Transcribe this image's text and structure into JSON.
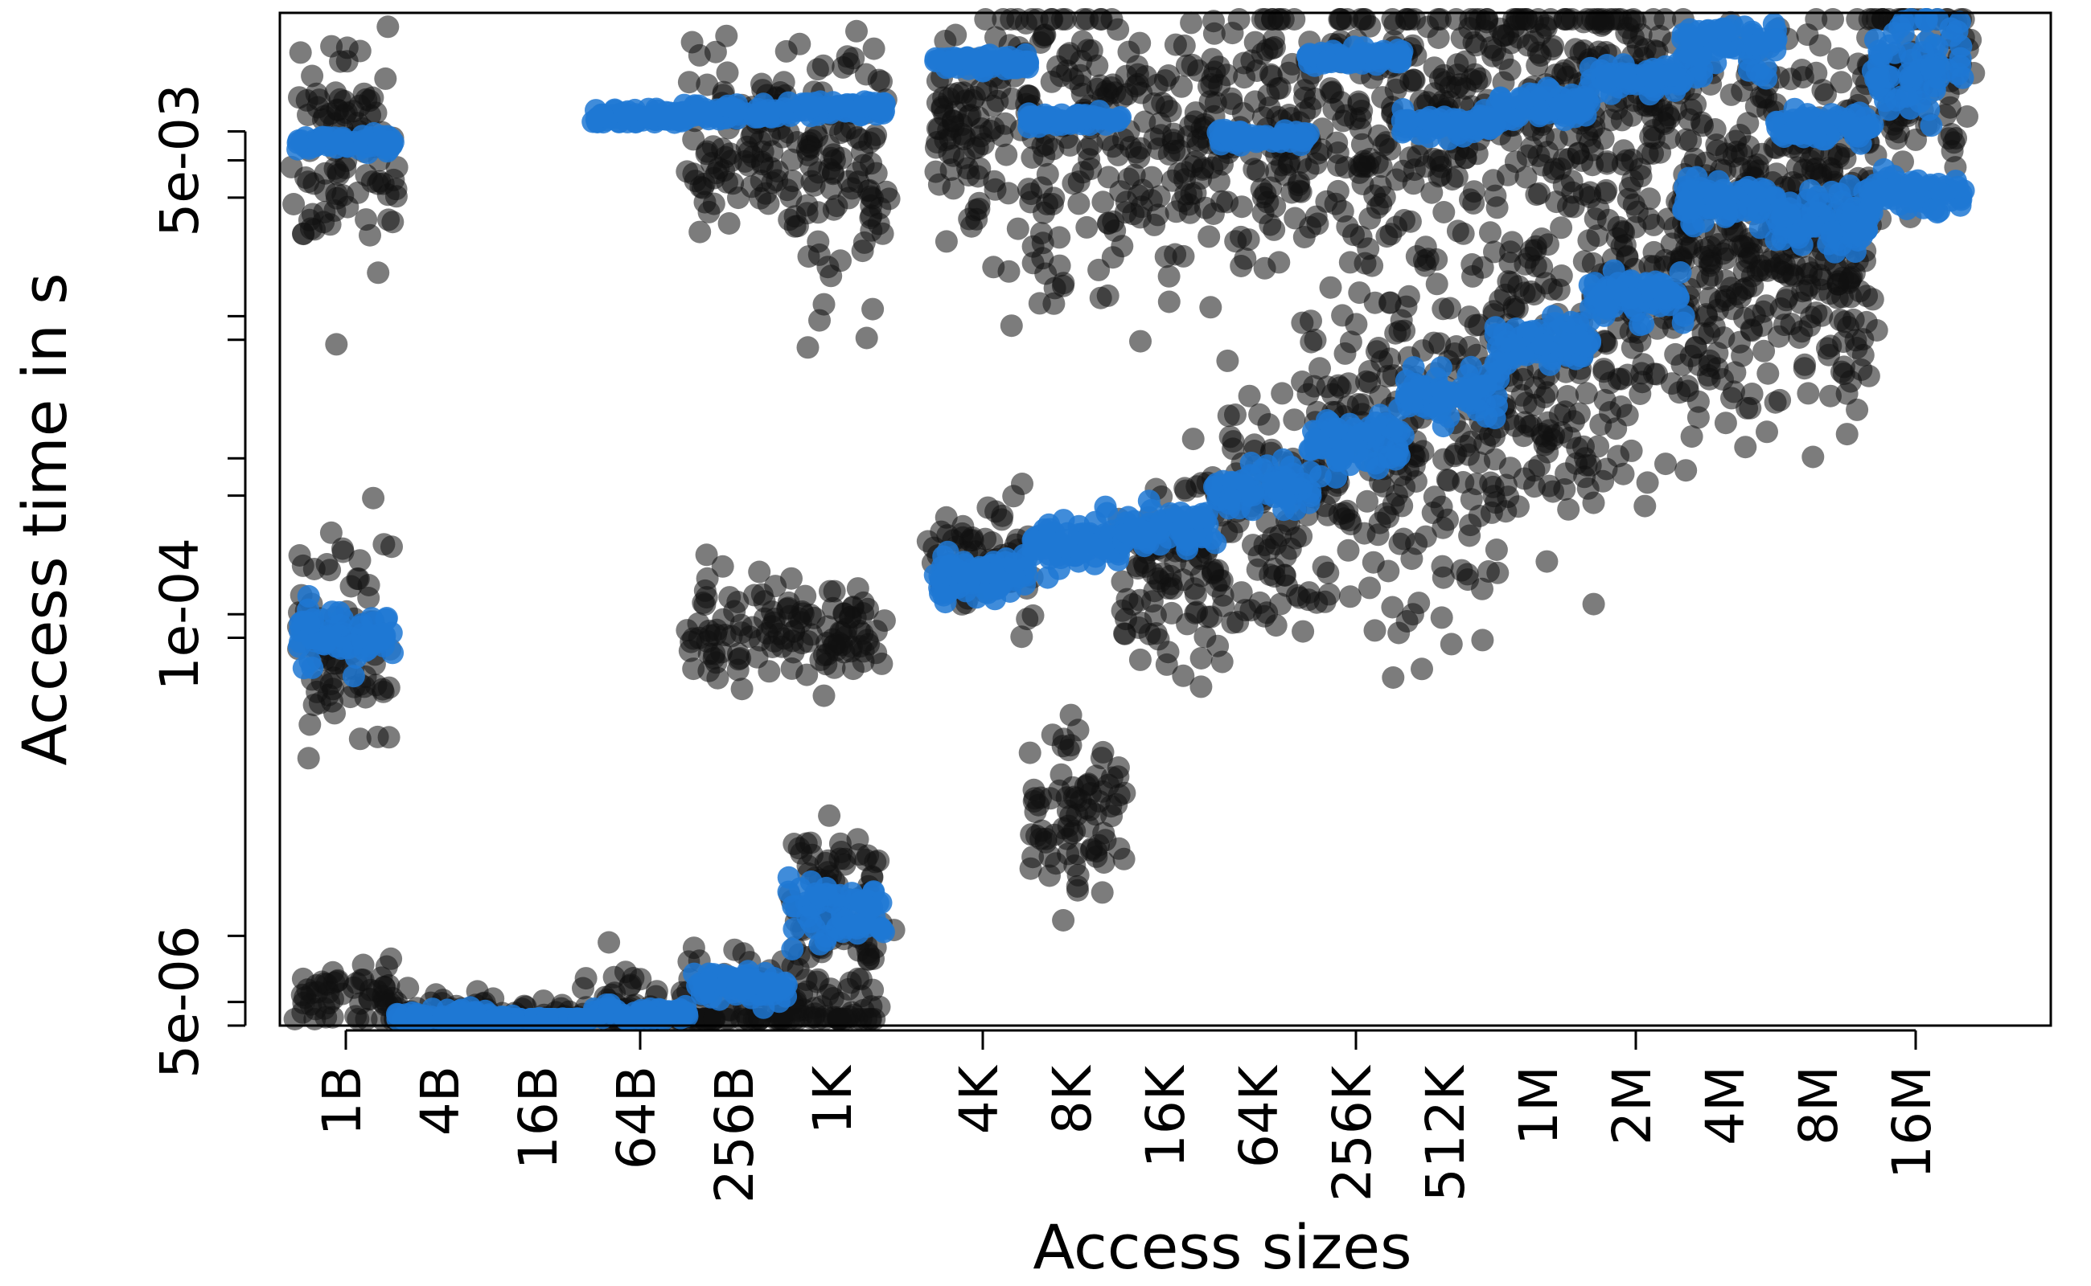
{
  "chart_data": {
    "type": "scatter",
    "title": "",
    "xlabel": "Access sizes",
    "ylabel": "Access time in s",
    "y_scale": "log",
    "ylim": [
      5e-06,
      0.0125
    ],
    "y_ticks": [
      5e-06,
      6e-06,
      1e-05,
      0.0001,
      0.00012,
      0.0003,
      0.0004,
      0.001,
      0.0012,
      0.003,
      0.004,
      0.005
    ],
    "y_tick_labels": [
      {
        "value": 6e-06,
        "label": "5e-06"
      },
      {
        "value": 0.00012,
        "label": "1e-04"
      },
      {
        "value": 0.004,
        "label": "5e-03"
      }
    ],
    "categories": [
      "1B",
      "4B",
      "16B",
      "64B",
      "256B",
      "1K",
      "4K",
      "8K",
      "16K",
      "64K",
      "256K",
      "512K",
      "1M",
      "2M",
      "4M",
      "8M",
      "16M"
    ],
    "x_major_ticks": [
      "1B",
      "64B",
      "4K",
      "256K",
      "2M",
      "16M"
    ],
    "grid": false,
    "legend": "none",
    "colors": {
      "series_a": "#111111",
      "series_b": "#1f78d4"
    },
    "series": [
      {
        "color_key": "series_a",
        "clusters": [
          {
            "x": "1B",
            "y": 0.0001,
            "spread": 0.35
          },
          {
            "x": "1B",
            "y": 0.0044,
            "spread": 0.45
          },
          {
            "x": "1B",
            "y": 6.2e-06,
            "spread": 0.12
          },
          {
            "x": "4B",
            "y": 5.3e-06,
            "spread": 0.1
          },
          {
            "x": "16B",
            "y": 5.2e-06,
            "spread": 0.1
          },
          {
            "x": "64B",
            "y": 5.6e-06,
            "spread": 0.15
          },
          {
            "x": "256B",
            "y": 5.5e-06,
            "spread": 0.25
          },
          {
            "x": "256B",
            "y": 0.000105,
            "spread": 0.2
          },
          {
            "x": "256B",
            "y": 0.0045,
            "spread": 0.4
          },
          {
            "x": "1K",
            "y": 5.8e-06,
            "spread": 0.2
          },
          {
            "x": "1K",
            "y": 1.3e-05,
            "spread": 0.3
          },
          {
            "x": "1K",
            "y": 0.0001,
            "spread": 0.2
          },
          {
            "x": "1K",
            "y": 0.004,
            "spread": 0.5
          },
          {
            "x": "4K",
            "y": 0.00018,
            "spread": 0.2
          },
          {
            "x": "4K",
            "y": 0.0052,
            "spread": 0.5
          },
          {
            "x": "8K",
            "y": 0.0048,
            "spread": 0.6
          },
          {
            "x": "8K",
            "y": 2.5e-05,
            "spread": 0.35
          },
          {
            "x": "16K",
            "y": 0.0049,
            "spread": 0.5
          },
          {
            "x": "16K",
            "y": 0.00016,
            "spread": 0.4
          },
          {
            "x": "64K",
            "y": 0.00025,
            "spread": 0.45
          },
          {
            "x": "64K",
            "y": 0.005,
            "spread": 0.55
          },
          {
            "x": "256K",
            "y": 0.0055,
            "spread": 0.5
          },
          {
            "x": "256K",
            "y": 0.00045,
            "spread": 0.6
          },
          {
            "x": "512K",
            "y": 0.006,
            "spread": 0.55
          },
          {
            "x": "512K",
            "y": 0.00045,
            "spread": 0.7
          },
          {
            "x": "1M",
            "y": 0.0065,
            "spread": 0.55
          },
          {
            "x": "1M",
            "y": 0.0008,
            "spread": 0.7
          },
          {
            "x": "2M",
            "y": 0.007,
            "spread": 0.5
          },
          {
            "x": "2M",
            "y": 0.0012,
            "spread": 0.65
          },
          {
            "x": "4M",
            "y": 0.0035,
            "spread": 0.55
          },
          {
            "x": "4M",
            "y": 0.0015,
            "spread": 0.55
          },
          {
            "x": "8M",
            "y": 0.004,
            "spread": 0.55
          },
          {
            "x": "8M",
            "y": 0.0016,
            "spread": 0.5
          },
          {
            "x": "16M",
            "y": 0.008,
            "spread": 0.45
          }
        ]
      },
      {
        "color_key": "series_b",
        "clusters": [
          {
            "x": "1B",
            "y": 0.0001,
            "spread": 0.08
          },
          {
            "x": "1B",
            "y": 0.0046,
            "spread": 0.02
          },
          {
            "x": "4B",
            "y": 5.3e-06,
            "spread": 0.03
          },
          {
            "x": "16B",
            "y": 5.1e-06,
            "spread": 0.02
          },
          {
            "x": "64B",
            "y": 5.5e-06,
            "spread": 0.02
          },
          {
            "x": "64B",
            "y": 0.0056,
            "spread": 0.02
          },
          {
            "x": "256B",
            "y": 6.8e-06,
            "spread": 0.04
          },
          {
            "x": "256B",
            "y": 0.0058,
            "spread": 0.02
          },
          {
            "x": "1K",
            "y": 1.2e-05,
            "spread": 0.08
          },
          {
            "x": "1K",
            "y": 0.006,
            "spread": 0.02
          },
          {
            "x": "4K",
            "y": 0.00016,
            "spread": 0.07
          },
          {
            "x": "4K",
            "y": 0.0085,
            "spread": 0.02
          },
          {
            "x": "8K",
            "y": 0.00021,
            "spread": 0.07
          },
          {
            "x": "8K",
            "y": 0.0055,
            "spread": 0.02
          },
          {
            "x": "16K",
            "y": 0.00023,
            "spread": 0.06
          },
          {
            "x": "64K",
            "y": 0.00032,
            "spread": 0.06
          },
          {
            "x": "64K",
            "y": 0.0048,
            "spread": 0.02
          },
          {
            "x": "256K",
            "y": 0.00045,
            "spread": 0.07
          },
          {
            "x": "256K",
            "y": 0.0088,
            "spread": 0.02
          },
          {
            "x": "512K",
            "y": 0.00065,
            "spread": 0.07
          },
          {
            "x": "512K",
            "y": 0.0053,
            "spread": 0.03
          },
          {
            "x": "1M",
            "y": 0.00095,
            "spread": 0.06
          },
          {
            "x": "1M",
            "y": 0.006,
            "spread": 0.04
          },
          {
            "x": "2M",
            "y": 0.0014,
            "spread": 0.06
          },
          {
            "x": "2M",
            "y": 0.0075,
            "spread": 0.04
          },
          {
            "x": "4M",
            "y": 0.0029,
            "spread": 0.06
          },
          {
            "x": "4M",
            "y": 0.0095,
            "spread": 0.08
          },
          {
            "x": "8M",
            "y": 0.0052,
            "spread": 0.04
          },
          {
            "x": "8M",
            "y": 0.0025,
            "spread": 0.08
          },
          {
            "x": "16M",
            "y": 0.0085,
            "spread": 0.15
          },
          {
            "x": "16M",
            "y": 0.0031,
            "spread": 0.05
          }
        ]
      }
    ]
  }
}
